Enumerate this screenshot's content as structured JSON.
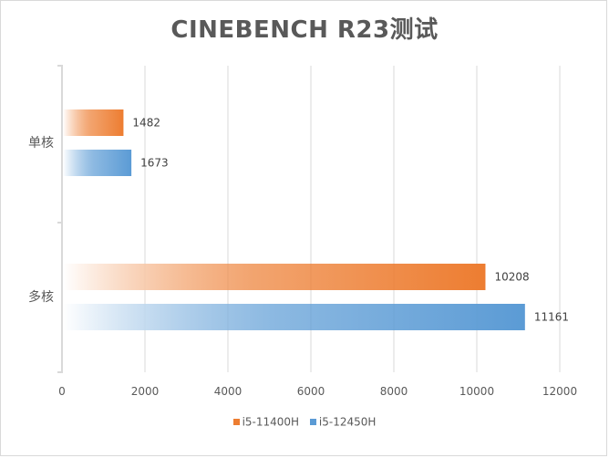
{
  "colors": {
    "series_1": "#ED7D31",
    "series_2": "#5B9BD5",
    "grid": "#d9d9d9",
    "axis_text": "#595959"
  },
  "chart_data": {
    "type": "bar",
    "orientation": "horizontal",
    "title": "CINEBENCH R23测试",
    "xlabel": "",
    "ylabel": "",
    "categories": [
      "单核",
      "多核"
    ],
    "series": [
      {
        "name": "i5-11400H",
        "values": [
          1482,
          10208
        ]
      },
      {
        "name": "i5-12450H",
        "values": [
          1673,
          11161
        ]
      }
    ],
    "xlim": [
      0,
      12000
    ],
    "ticks": [
      0,
      2000,
      4000,
      6000,
      8000,
      10000,
      12000
    ],
    "grid": true,
    "data_labels": true,
    "legend_position": "bottom"
  }
}
